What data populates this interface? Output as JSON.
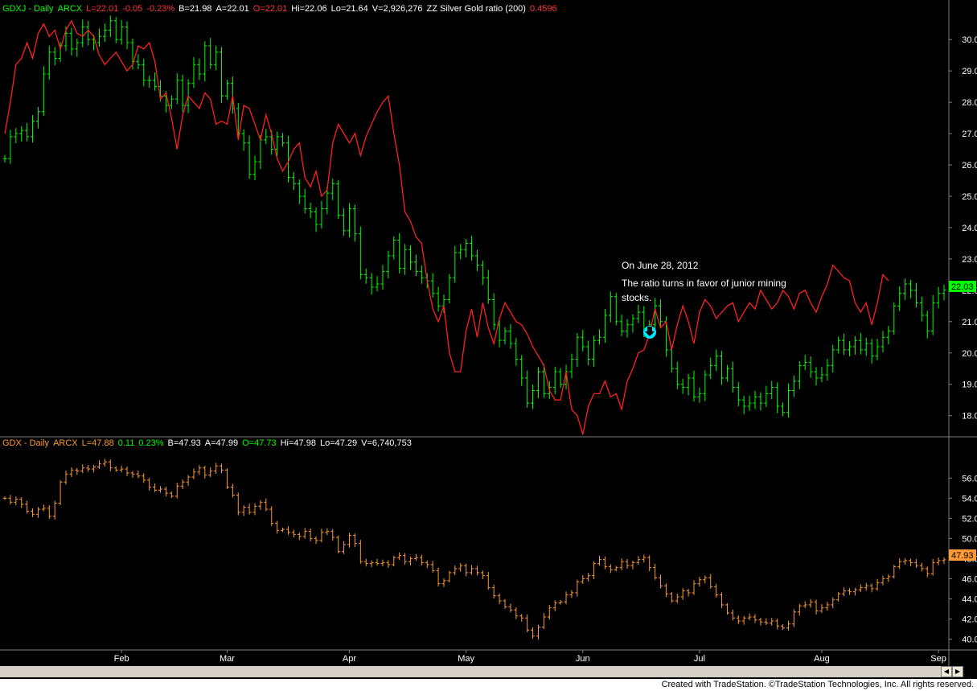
{
  "top_panel": {
    "header": [
      {
        "text": "GDXJ - Daily",
        "color": "#00ff00"
      },
      {
        "text": "ARCX",
        "color": "#00ff00"
      },
      {
        "text": "L=22.01",
        "color": "#ff3030"
      },
      {
        "text": "-0.05",
        "color": "#ff3030"
      },
      {
        "text": "-0.23%",
        "color": "#ff3030"
      },
      {
        "text": "B=21.98",
        "color": "#ffffff"
      },
      {
        "text": "A=22.01",
        "color": "#ffffff"
      },
      {
        "text": "O=22.01",
        "color": "#ff3030"
      },
      {
        "text": "Hi=22.06",
        "color": "#ffffff"
      },
      {
        "text": "Lo=21.64",
        "color": "#ffffff"
      },
      {
        "text": "V=2,926,276",
        "color": "#ffffff"
      },
      {
        "text": "ZZ Silver Gold ratio (200)",
        "color": "#ffffff"
      },
      {
        "text": "0.4596",
        "color": "#ff3030"
      }
    ],
    "last_price_tag": "22.03",
    "annotation": {
      "line1": "On June 28, 2012",
      "line2": "The ratio turns in favor of junior mining",
      "line3": "stocks."
    }
  },
  "bottom_panel": {
    "header": [
      {
        "text": "GDX - Daily",
        "color": "#ff9933"
      },
      {
        "text": "ARCX",
        "color": "#ff9933"
      },
      {
        "text": "L=47.88",
        "color": "#ff9933"
      },
      {
        "text": "0.11",
        "color": "#00ff00"
      },
      {
        "text": "0.23%",
        "color": "#00ff00"
      },
      {
        "text": "B=47.93",
        "color": "#ffffff"
      },
      {
        "text": "A=47.99",
        "color": "#ffffff"
      },
      {
        "text": "O=47.73",
        "color": "#00ff00"
      },
      {
        "text": "Hi=47.98",
        "color": "#ffffff"
      },
      {
        "text": "Lo=47.29",
        "color": "#ffffff"
      },
      {
        "text": "V=6,740,753",
        "color": "#ffffff"
      }
    ],
    "last_price_tag": "47.93"
  },
  "footer": "Created with TradeStation. ©TradeStation Technologies, Inc. All rights reserved.",
  "chart_data": [
    {
      "type": "ohlc",
      "name": "GDXJ - Daily",
      "color": "#00ff00",
      "y_ticks": [
        "18.00",
        "19.00",
        "20.00",
        "21.00",
        "22.00",
        "23.00",
        "24.00",
        "25.00",
        "26.00",
        "27.00",
        "28.00",
        "29.00",
        "30.00"
      ],
      "ylim": [
        17.35,
        30.8
      ],
      "x_ticks": [
        "Feb",
        "Mar",
        "Apr",
        "May",
        "Jun",
        "Jul",
        "Aug",
        "Sep"
      ],
      "x_tick_day": [
        21,
        40,
        62,
        83,
        104,
        125,
        147,
        168
      ],
      "day_count": 170,
      "closes": [
        26.2,
        26.9,
        27.0,
        27.1,
        26.9,
        27.4,
        27.7,
        28.9,
        29.6,
        29.4,
        29.8,
        30.2,
        29.7,
        29.9,
        30.4,
        30.0,
        29.9,
        30.1,
        30.3,
        30.6,
        30.0,
        30.4,
        29.9,
        29.3,
        29.2,
        28.7,
        28.7,
        28.5,
        28.2,
        27.9,
        28.1,
        28.7,
        27.9,
        28.6,
        29.2,
        28.9,
        29.8,
        29.2,
        29.6,
        28.2,
        28.6,
        27.8,
        27.0,
        26.7,
        25.7,
        26.1,
        26.8,
        26.9,
        26.5,
        26.9,
        26.7,
        25.6,
        25.4,
        25.0,
        24.6,
        24.5,
        24.1,
        24.6,
        25.1,
        25.4,
        24.4,
        23.9,
        24.6,
        23.8,
        22.5,
        22.4,
        22.1,
        22.2,
        22.6,
        23.1,
        23.6,
        22.7,
        23.3,
        22.9,
        22.6,
        22.4,
        22.3,
        21.9,
        21.5,
        21.7,
        22.4,
        23.2,
        23.3,
        23.5,
        23.1,
        22.8,
        22.4,
        21.7,
        20.9,
        20.4,
        20.7,
        20.3,
        19.8,
        19.2,
        18.4,
        18.8,
        19.4,
        18.7,
        18.9,
        19.4,
        19.0,
        19.4,
        19.8,
        20.5,
        20.2,
        19.8,
        20.4,
        20.5,
        21.2,
        21.8,
        21.0,
        20.7,
        20.9,
        21.1,
        21.3,
        20.7,
        20.9,
        21.5,
        21.0,
        20.1,
        19.5,
        19.0,
        18.9,
        19.2,
        18.6,
        18.7,
        19.3,
        19.6,
        19.9,
        19.2,
        19.5,
        18.9,
        18.5,
        18.3,
        18.4,
        18.6,
        18.4,
        18.7,
        18.9,
        18.3,
        18.1,
        18.8,
        19.1,
        19.6,
        19.7,
        19.4,
        19.2,
        19.3,
        19.6,
        20.1,
        20.4,
        20.1,
        20.2,
        20.4,
        20.1,
        20.3,
        19.9,
        20.2,
        20.5,
        20.7,
        21.5,
        21.9,
        22.2,
        22.0,
        21.6,
        21.2,
        20.7,
        21.6,
        21.9,
        22.01
      ],
      "overlay": {
        "name": "ZZ Silver Gold ratio (200)",
        "color": "#ff2020",
        "note": "ratio overlay drawn on GDXJ scale",
        "values": [
          27.0,
          28.0,
          29.2,
          29.4,
          29.9,
          29.4,
          30.2,
          30.5,
          30.1,
          30.3,
          29.7,
          30.3,
          30.6,
          30.2,
          30.1,
          30.3,
          30.1,
          29.5,
          29.2,
          29.4,
          29.6,
          29.3,
          29.0,
          29.2,
          29.8,
          29.7,
          29.9,
          29.3,
          28.1,
          28.3,
          27.5,
          26.5,
          27.6,
          28.2,
          28.0,
          27.8,
          28.3,
          28.1,
          27.3,
          27.4,
          27.3,
          28.2,
          26.8,
          27.9,
          27.8,
          27.3,
          26.8,
          27.6,
          27.0,
          26.2,
          25.8,
          26.1,
          26.5,
          26.7,
          25.6,
          25.3,
          25.8,
          25.0,
          25.2,
          26.7,
          27.3,
          27.0,
          26.7,
          27.0,
          26.3,
          26.9,
          27.3,
          27.7,
          28.0,
          28.2,
          27.0,
          26.0,
          24.5,
          24.2,
          23.7,
          23.5,
          22.3,
          21.4,
          21.0,
          21.5,
          20.0,
          19.4,
          19.4,
          20.7,
          21.4,
          20.5,
          21.6,
          20.8,
          20.3,
          21.1,
          21.6,
          21.3,
          21.0,
          20.9,
          20.6,
          20.2,
          19.9,
          19.6,
          18.8,
          18.5,
          18.5,
          19.4,
          18.2,
          18.0,
          17.4,
          18.3,
          18.7,
          18.7,
          19.1,
          18.6,
          18.7,
          18.2,
          19.1,
          19.5,
          20.0,
          20.1,
          20.6,
          21.4,
          20.8,
          21.0,
          20.1,
          20.9,
          21.5,
          21.0,
          20.3,
          21.3,
          21.7,
          21.5,
          21.1,
          21.3,
          21.5,
          21.6,
          21.0,
          21.3,
          21.6,
          21.4,
          22.0,
          21.7,
          21.4,
          21.6,
          22.0,
          21.8,
          21.4,
          21.9,
          22.0,
          21.6,
          21.3,
          21.8,
          22.2,
          22.8,
          22.6,
          22.4,
          22.3,
          21.6,
          21.3,
          21.6,
          20.9,
          21.6,
          22.5,
          22.3
        ]
      }
    },
    {
      "type": "ohlc",
      "name": "GDX - Daily",
      "color": "#ff9933",
      "y_ticks": [
        "40.00",
        "42.00",
        "44.00",
        "46.00",
        "48.00",
        "50.00",
        "52.00",
        "54.00",
        "56.00"
      ],
      "ylim": [
        39.0,
        58.9
      ],
      "x_ticks": [
        "Feb",
        "Mar",
        "Apr",
        "May",
        "Jun",
        "Jul",
        "Aug",
        "Sep"
      ],
      "closes": [
        54.0,
        53.6,
        53.9,
        53.4,
        52.7,
        52.4,
        52.9,
        53.0,
        52.2,
        53.5,
        55.6,
        56.4,
        56.8,
        56.7,
        57.0,
        56.9,
        57.1,
        57.4,
        57.6,
        57.0,
        56.8,
        56.9,
        56.5,
        56.4,
        56.2,
        55.8,
        55.1,
        54.8,
        54.9,
        54.5,
        54.2,
        55.2,
        55.6,
        56.1,
        56.6,
        57.0,
        56.3,
        56.7,
        57.2,
        56.8,
        55.1,
        54.3,
        52.6,
        53.1,
        52.6,
        53.2,
        53.6,
        52.9,
        51.5,
        50.8,
        50.9,
        50.6,
        50.4,
        50.2,
        50.7,
        50.0,
        49.8,
        50.6,
        50.7,
        50.1,
        48.7,
        49.4,
        50.3,
        49.5,
        47.7,
        47.5,
        47.6,
        47.5,
        47.6,
        47.4,
        48.1,
        48.3,
        47.7,
        48.0,
        48.1,
        47.6,
        47.4,
        46.8,
        45.5,
        45.8,
        46.6,
        47.0,
        47.3,
        46.6,
        47.0,
        46.6,
        46.3,
        45.1,
        44.3,
        43.8,
        43.2,
        42.9,
        42.3,
        42.1,
        40.9,
        40.3,
        41.2,
        42.2,
        43.1,
        43.6,
        43.7,
        44.4,
        44.6,
        45.7,
        46.0,
        46.3,
        47.5,
        47.9,
        47.2,
        46.9,
        47.1,
        47.7,
        47.3,
        47.6,
        47.9,
        48.1,
        47.1,
        46.1,
        45.3,
        44.5,
        43.8,
        44.2,
        44.8,
        44.6,
        45.5,
        45.9,
        46.1,
        45.2,
        44.4,
        43.4,
        42.6,
        42.1,
        41.8,
        42.1,
        42.2,
        41.9,
        41.7,
        41.6,
        41.8,
        41.3,
        41.1,
        41.5,
        42.7,
        43.3,
        43.4,
        43.7,
        42.8,
        43.1,
        43.4,
        43.9,
        44.5,
        44.8,
        44.7,
        44.9,
        45.1,
        45.3,
        45.0,
        45.6,
        46.0,
        46.2,
        47.2,
        47.7,
        47.8,
        47.6,
        47.3,
        47.0,
        46.5,
        47.6,
        47.8,
        47.88
      ]
    }
  ]
}
